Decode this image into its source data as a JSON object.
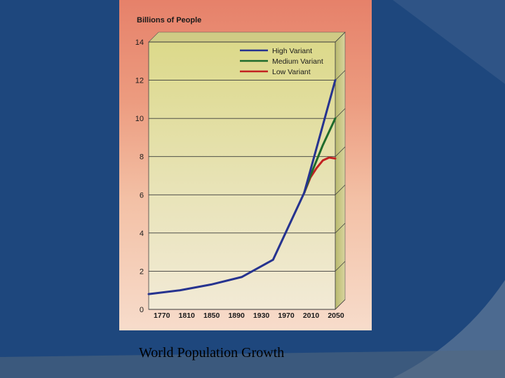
{
  "caption": "World Population Growth",
  "chart_data": {
    "type": "line",
    "ylabel": "Billions of People",
    "xlabel": "",
    "ylim": [
      0,
      14
    ],
    "yticks": [
      0,
      2,
      4,
      6,
      8,
      10,
      12,
      14
    ],
    "xticks": [
      "1770",
      "1810",
      "1850",
      "1890",
      "1930",
      "1970",
      "2010",
      "2050"
    ],
    "xlim": [
      1750,
      2050
    ],
    "legend_position": "top-right",
    "series": [
      {
        "name": "High Variant",
        "color": "#26338f",
        "x": [
          1750,
          1800,
          1850,
          1900,
          1950,
          2000,
          2050
        ],
        "y": [
          0.8,
          1.0,
          1.3,
          1.7,
          2.6,
          6.1,
          12.0
        ]
      },
      {
        "name": "Medium Variant",
        "color": "#1f6b2c",
        "x": [
          2000,
          2010,
          2020,
          2030,
          2040,
          2050
        ],
        "y": [
          6.1,
          7.0,
          7.8,
          8.6,
          9.3,
          10.0
        ]
      },
      {
        "name": "Low Variant",
        "color": "#c22121",
        "x": [
          2000,
          2010,
          2020,
          2030,
          2040,
          2050
        ],
        "y": [
          6.1,
          6.9,
          7.4,
          7.8,
          7.95,
          7.9
        ]
      }
    ]
  }
}
